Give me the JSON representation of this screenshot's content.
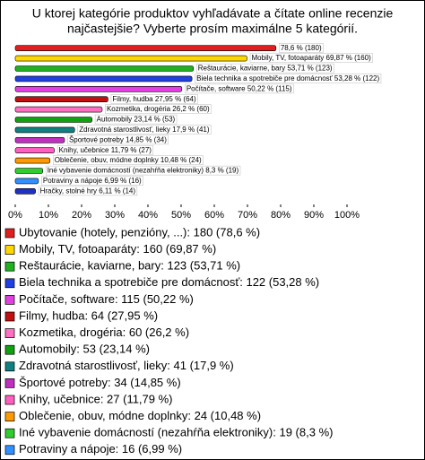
{
  "chart_data": {
    "type": "hbar",
    "title": [
      "U ktorej kategórie produktov vyhľadávate a čítate online recenzie",
      "najčastejšie? Vyberte prosím maximálne 5 kategórií."
    ],
    "categories": [
      "Ubytovanie (hotely, penzióny, ...): 180 (78,6 %)",
      "Mobily, TV, fotoaparáty: 160 (69,87 %)",
      "Reštaurácie, kaviarne, bary: 123 (53,71 %)",
      "Biela technika a spotrebiče pre domácnosť: 122 (53,28 %)",
      "Počítače, software: 115 (50,22 %)",
      "Filmy, hudba: 64 (27,95 %)",
      "Kozmetika, drogéria: 60 (26,2 %)",
      "Automobily: 53 (23,14 %)",
      "Zdravotná starostlivosť, lieky: 41 (17,9 %)",
      "Športové potreby: 34 (14,85 %)",
      "Knihy, učebnice: 27 (11,79 %)",
      "Oblečenie, obuv, módne doplnky: 24 (10,48 %)",
      "Iné vybavenie domácností (nezahŕňa elektroniky): 19 (8,3 %)",
      "Potraviny a nápoje: 16 (6,99 %)",
      "Hračky, stolné hry: 14 (6,11 %)"
    ],
    "values": [
      78.6,
      69.87,
      53.71,
      53.28,
      50.22,
      27.95,
      26.2,
      23.14,
      17.9,
      14.85,
      11.79,
      10.48,
      8.3,
      6.99,
      6.11
    ],
    "value_labels": [
      "78,6 % (180)",
      "Mobily, TV, fotoaparáty 69,87 % (160)",
      "Reštaurácie, kaviarne, bary 53,71 % (123)",
      "Biela technika a spotrebiče pre domácnosť 53,28 % (122)",
      "Počítače, software 50,22 % (115)",
      "Filmy, hudba 27,95 % (64)",
      "Kozmetika, drogéria 26,2 % (60)",
      "Automobily 23,14 % (53)",
      "Zdravotná starostlivosť, lieky 17,9 % (41)",
      "Športové potreby 14,85 % (34)",
      "Knihy, učebnice 11,79 % (27)",
      "Oblečenie, obuv, módne doplnky 10,48 % (24)",
      "Iné vybavenie domácností (nezahŕňa elektroniky) 8,3 % (19)",
      "Potraviny a nápoje 6,99 % (16)",
      "Hračky, stolné hry 6,11 % (14)"
    ],
    "colors": [
      "#e02020",
      "#ffd700",
      "#20b020",
      "#2040e0",
      "#e040e0",
      "#c01010",
      "#ff70c0",
      "#10a010",
      "#108080",
      "#c030c0",
      "#ff60c0",
      "#ff9900",
      "#30cc30",
      "#3090ff",
      "#2030c0"
    ],
    "xlim": [
      0,
      100
    ],
    "xticks": [
      {
        "value": 0,
        "label": "0%"
      },
      {
        "value": 10,
        "label": "10%"
      },
      {
        "value": 20,
        "label": "20%"
      },
      {
        "value": 30,
        "label": "30%"
      },
      {
        "value": 40,
        "label": "40%"
      },
      {
        "value": 50,
        "label": "50%"
      },
      {
        "value": 60,
        "label": "60%"
      },
      {
        "value": 70,
        "label": "70%"
      },
      {
        "value": 80,
        "label": "80%"
      },
      {
        "value": 90,
        "label": "90%"
      },
      {
        "value": 100,
        "label": "100%"
      }
    ],
    "grid": false
  }
}
